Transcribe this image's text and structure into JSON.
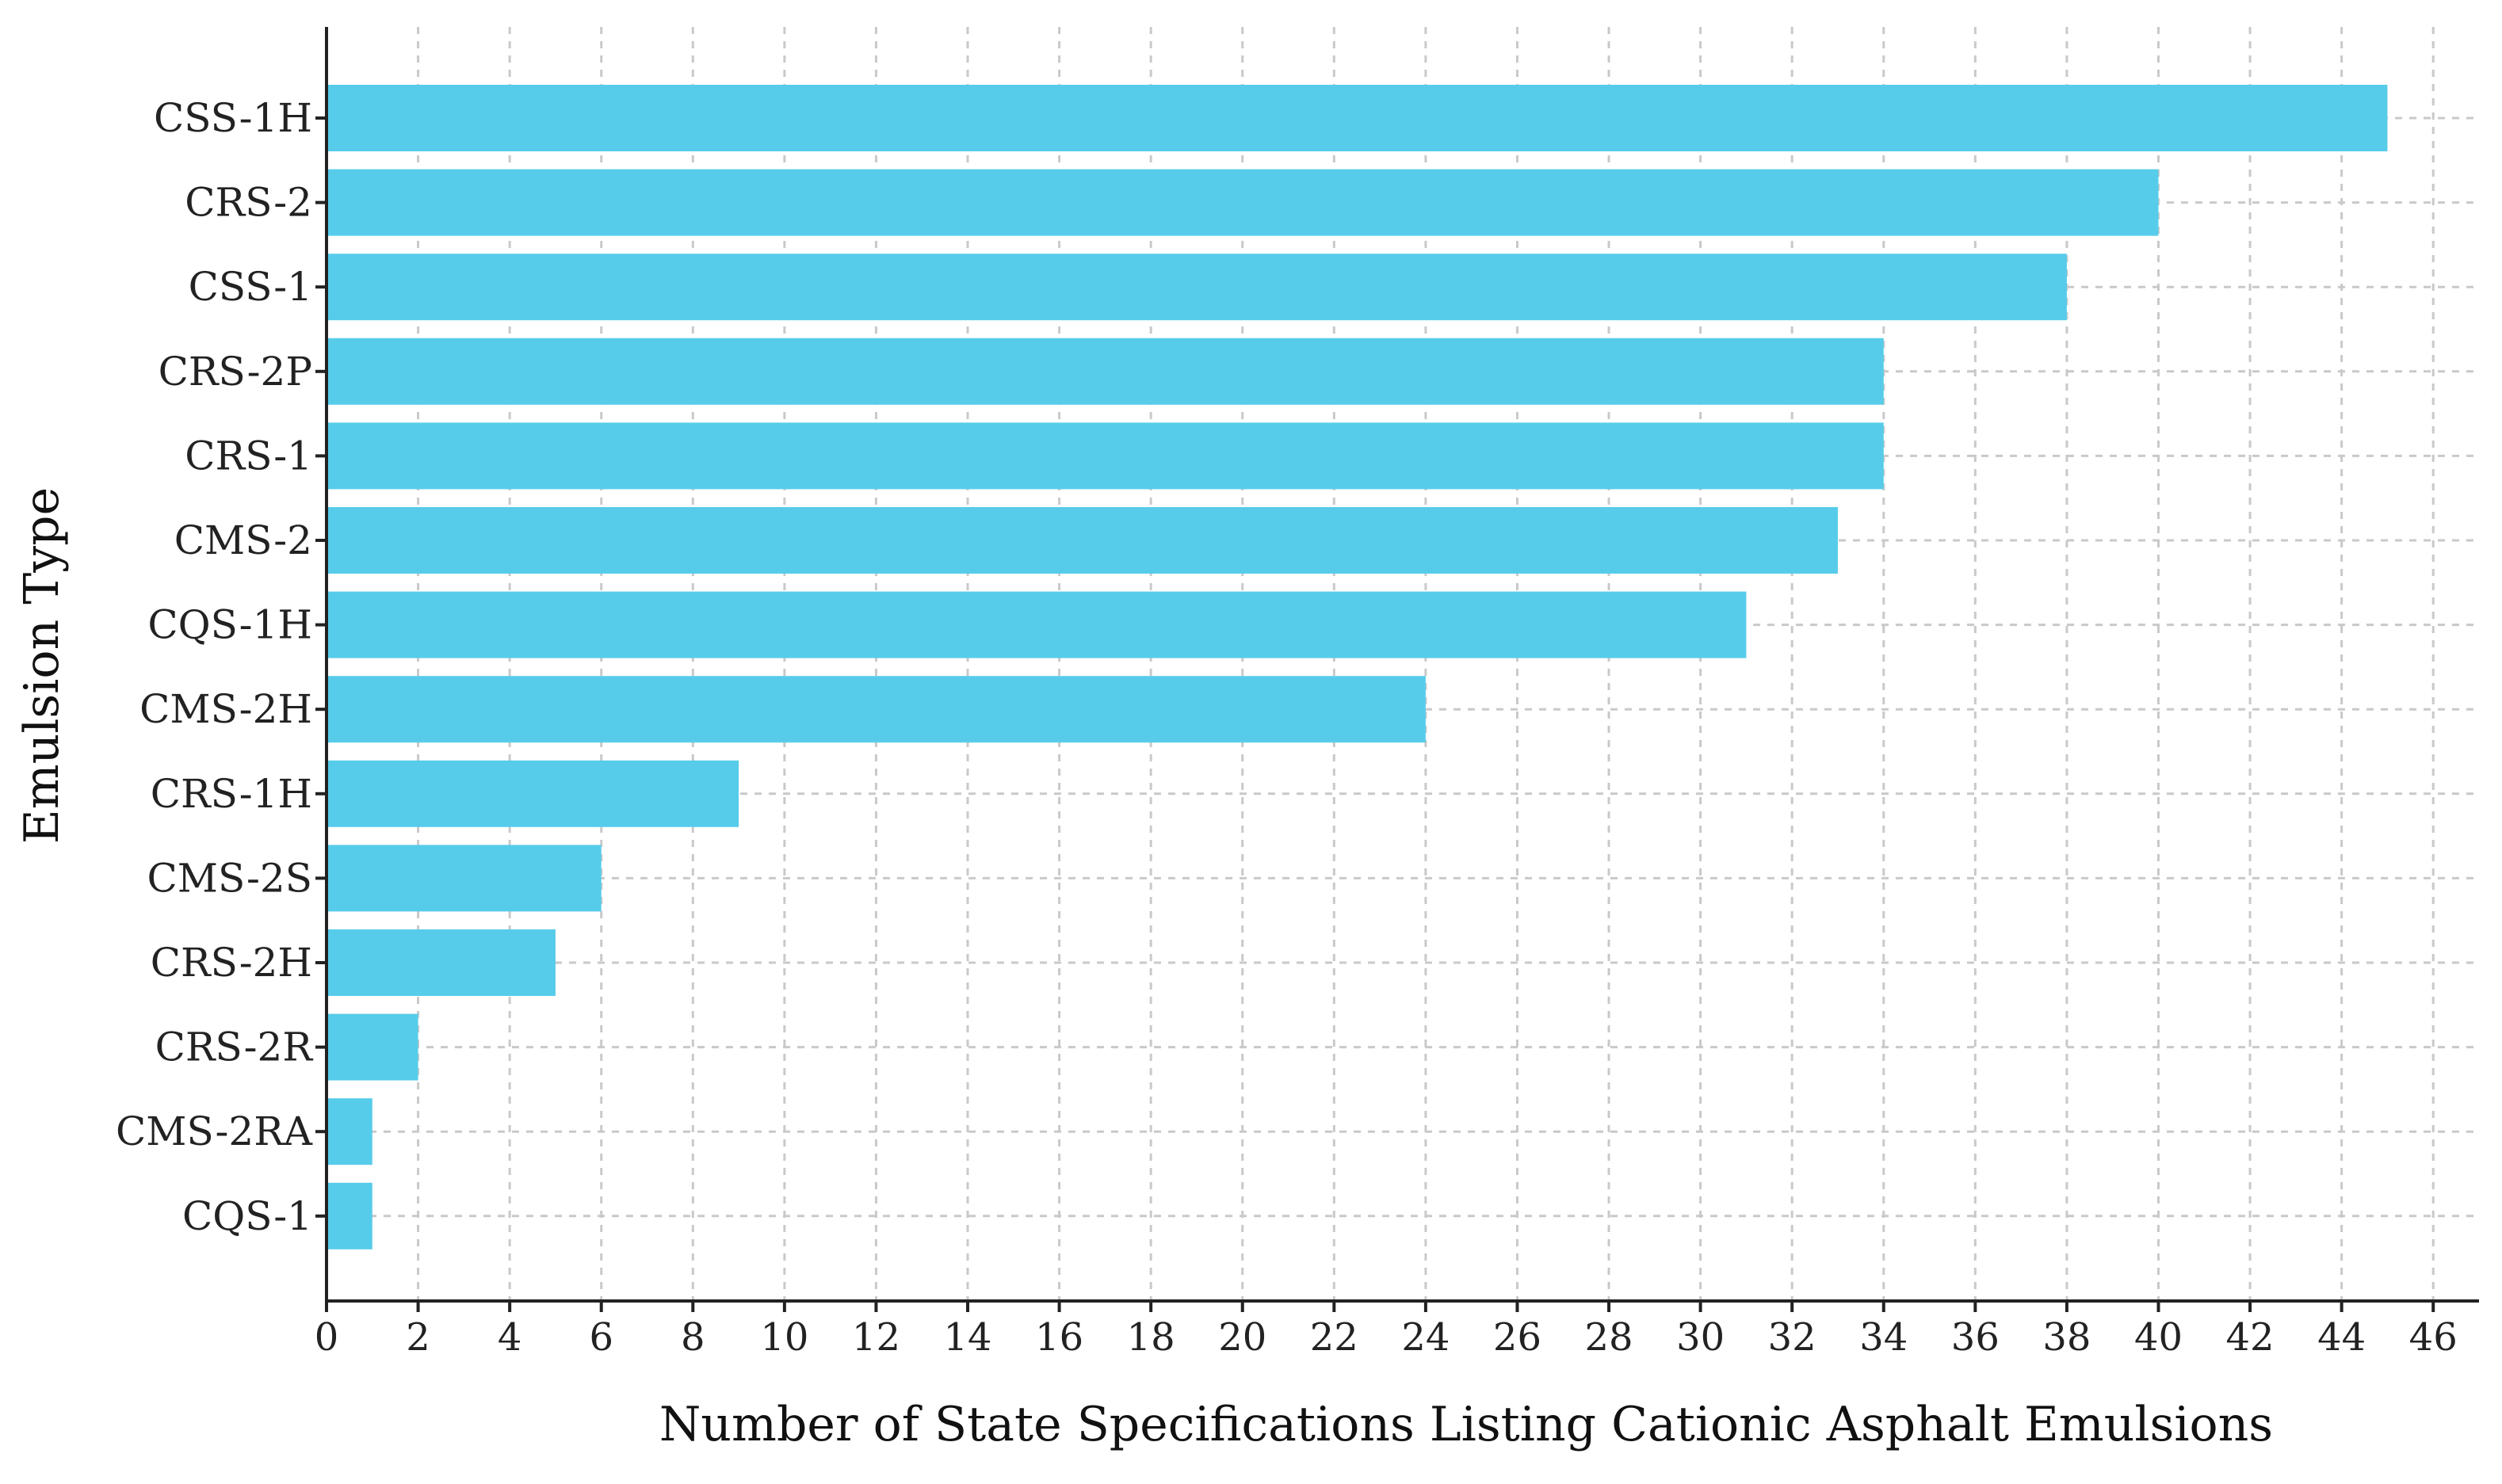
{
  "chart_data": {
    "type": "bar",
    "orientation": "horizontal",
    "categories": [
      "CSS-1H",
      "CRS-2",
      "CSS-1",
      "CRS-2P",
      "CRS-1",
      "CMS-2",
      "CQS-1H",
      "CMS-2H",
      "CRS-1H",
      "CMS-2S",
      "CRS-2H",
      "CRS-2R",
      "CMS-2RA",
      "CQS-1"
    ],
    "values": [
      45,
      40,
      38,
      34,
      34,
      33,
      31,
      24,
      9,
      6,
      5,
      2,
      1,
      1
    ],
    "xlabel": "Number of State Specifications Listing Cationic Asphalt Emulsions",
    "ylabel": "Emulsion Type",
    "xlim": [
      0,
      47
    ],
    "x_ticks": [
      0,
      2,
      4,
      6,
      8,
      10,
      12,
      14,
      16,
      18,
      20,
      22,
      24,
      26,
      28,
      30,
      32,
      34,
      36,
      38,
      40,
      42,
      44,
      46
    ],
    "grid": true,
    "bar_color": "#57ccea"
  }
}
